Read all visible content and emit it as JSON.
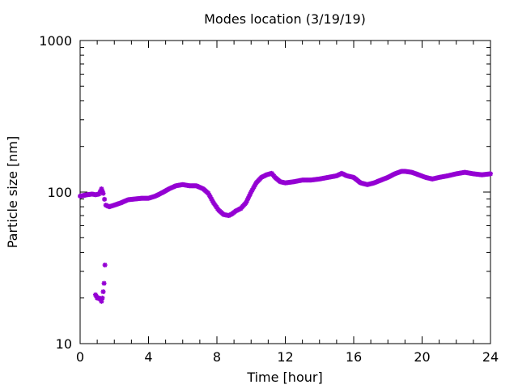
{
  "chart_data": {
    "type": "scatter",
    "title": "Modes location (3/19/19)",
    "xlabel": "Time [hour]",
    "ylabel": "Particle size [nm]",
    "xlim": [
      0,
      24
    ],
    "ylim": [
      10,
      1000
    ],
    "yscale": "log",
    "grid": false,
    "legend": "none",
    "marker_color": "#9400d3",
    "x_ticks": [
      0,
      4,
      8,
      12,
      16,
      20,
      24
    ],
    "x_tick_labels": [
      "0",
      "4",
      "8",
      "12",
      "16",
      "20",
      "24"
    ],
    "y_ticks": [
      10,
      100,
      1000
    ],
    "y_tick_labels": [
      "10",
      "100",
      "1000"
    ],
    "series": [
      {
        "x": [
          0.0,
          0.4,
          0.7,
          0.9,
          1.1,
          1.25,
          1.35,
          1.5,
          1.7,
          2.0,
          2.4,
          2.8,
          3.2,
          3.6,
          4.0,
          4.4,
          4.8,
          5.2,
          5.6,
          6.0,
          6.4,
          6.8,
          7.2,
          7.5,
          7.8,
          8.1,
          8.4,
          8.7,
          8.9,
          9.1,
          9.4,
          9.7,
          10.0,
          10.3,
          10.6,
          10.9,
          11.2,
          11.4,
          11.7,
          12.0,
          12.5,
          13.0,
          13.5,
          14.0,
          14.5,
          15.0,
          15.3,
          15.6,
          16.0,
          16.4,
          16.8,
          17.2,
          17.6,
          18.0,
          18.4,
          18.8,
          19.0,
          19.4,
          19.8,
          20.2,
          20.6,
          21.0,
          21.5,
          22.0,
          22.5,
          23.0,
          23.5,
          24.0
        ],
        "values": [
          94,
          96,
          97,
          96,
          97,
          105,
          98,
          82,
          80,
          82,
          85,
          89,
          90,
          91,
          91,
          94,
          99,
          105,
          110,
          112,
          110,
          110,
          105,
          98,
          85,
          76,
          71,
          70,
          72,
          75,
          78,
          85,
          100,
          115,
          125,
          130,
          133,
          125,
          117,
          115,
          117,
          120,
          120,
          122,
          125,
          128,
          133,
          128,
          125,
          115,
          112,
          115,
          120,
          125,
          132,
          137,
          137,
          135,
          130,
          125,
          122,
          125,
          128,
          132,
          135,
          132,
          130,
          132
        ]
      },
      {
        "x": [
          0.9,
          1.0,
          1.1,
          1.2,
          1.25,
          1.3,
          1.35,
          1.4,
          1.45
        ],
        "values": [
          21,
          20,
          20,
          19.5,
          19,
          20,
          22,
          25,
          33
        ]
      }
    ]
  }
}
